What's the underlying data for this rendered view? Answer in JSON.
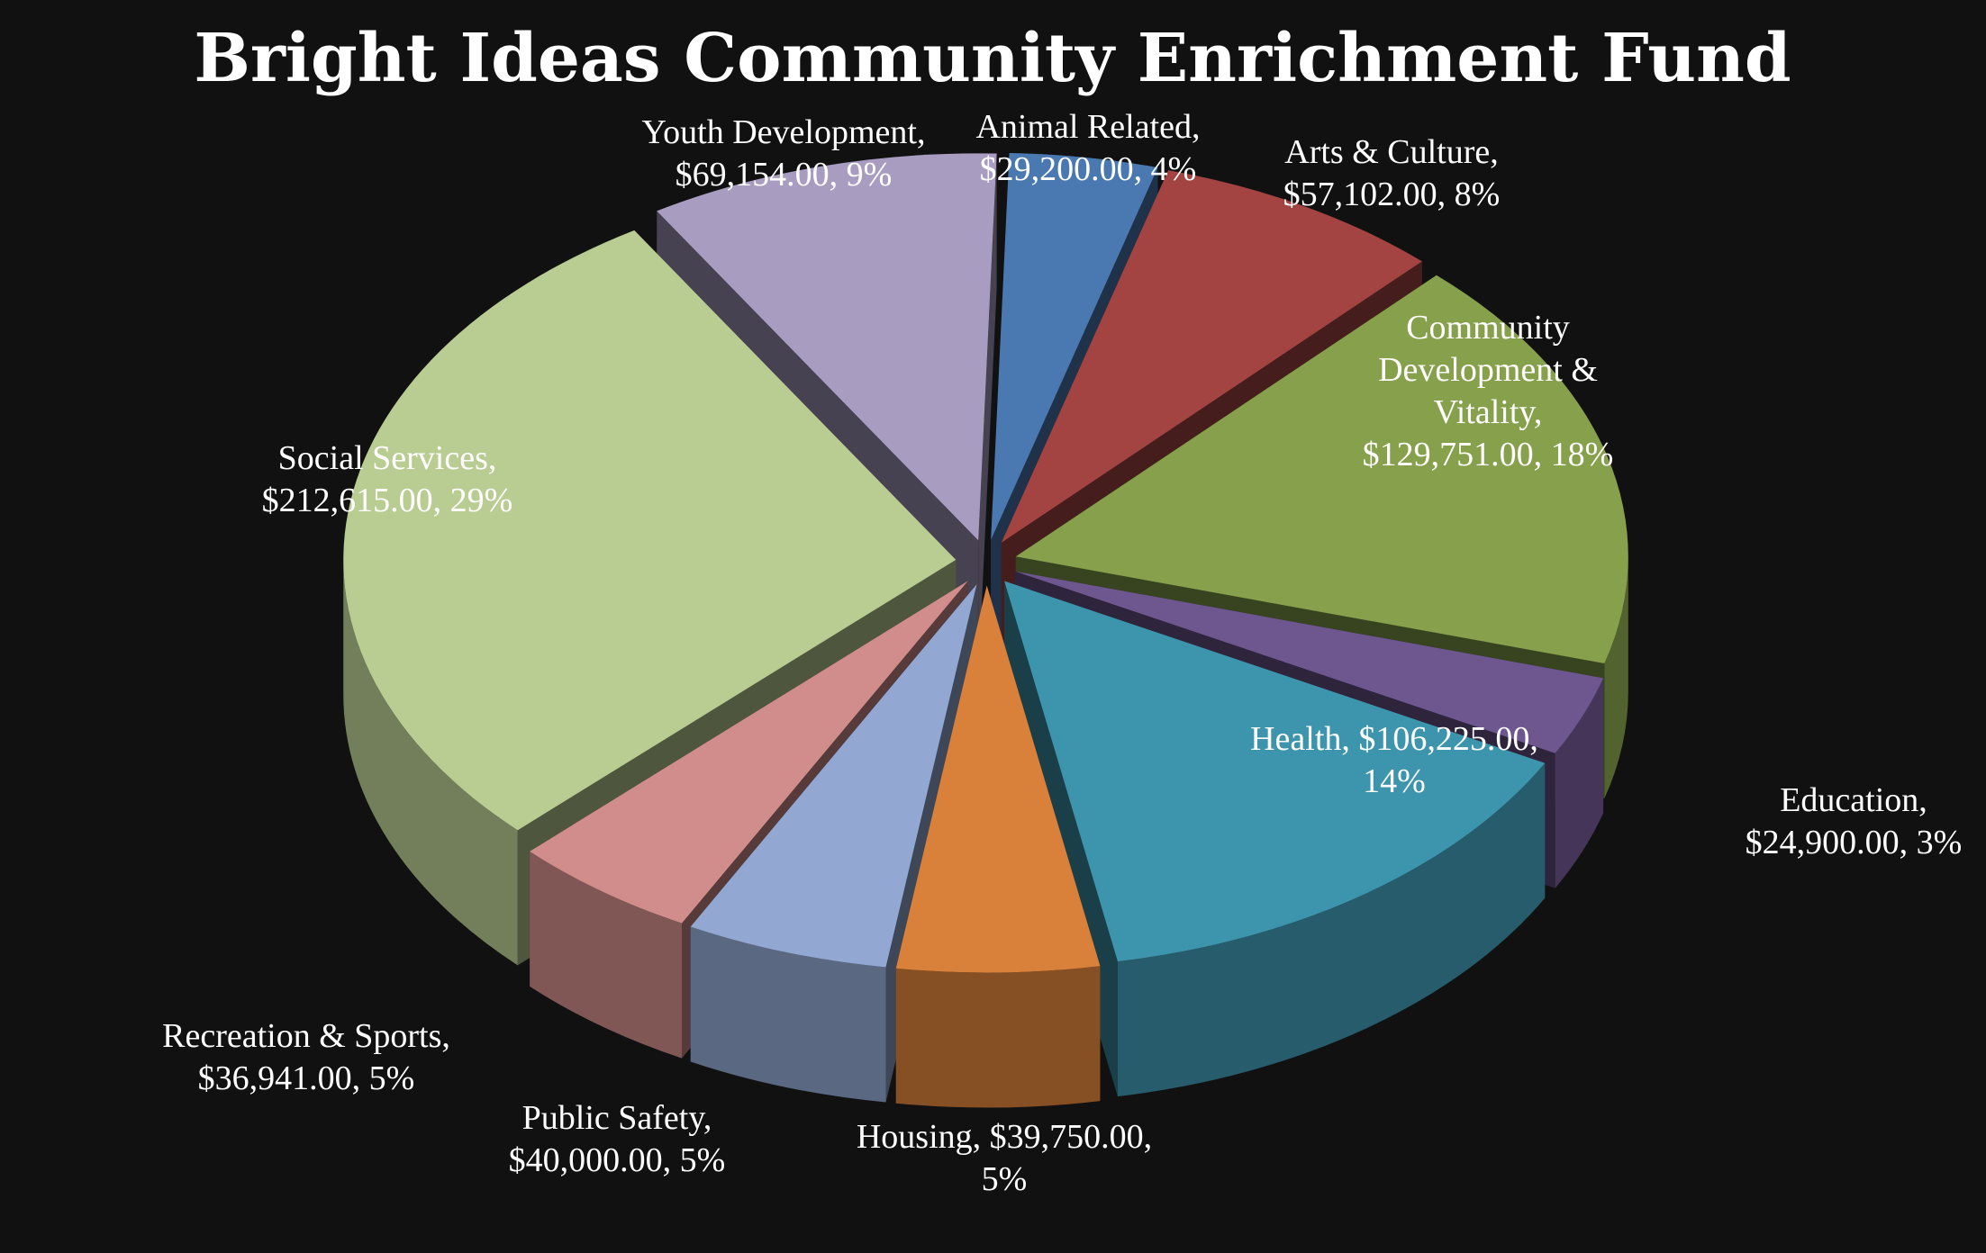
{
  "chart_data": {
    "type": "pie",
    "title": "Bright Ideas Community Enrichment Fund",
    "background": "#111111",
    "slices": [
      {
        "category": "Animal Related",
        "value": 29200.0,
        "percent": 4,
        "color": "#4a78b0",
        "label_lines": [
          "Animal Related,",
          "$29,200.00, 4%"
        ]
      },
      {
        "category": "Arts & Culture",
        "value": 57102.0,
        "percent": 8,
        "color": "#a34442",
        "label_lines": [
          "Arts & Culture,",
          "$57,102.00, 8%"
        ]
      },
      {
        "category": "Community Development & Vitality",
        "value": 129751.0,
        "percent": 18,
        "color": "#86a04b",
        "label_lines": [
          "Community",
          "Development &",
          "Vitality,",
          "$129,751.00, 18%"
        ]
      },
      {
        "category": "Education",
        "value": 24900.0,
        "percent": 3,
        "color": "#6e568f",
        "label_lines": [
          "Education,",
          "$24,900.00, 3%"
        ]
      },
      {
        "category": "Health",
        "value": 106225.0,
        "percent": 14,
        "color": "#3d95ad",
        "label_lines": [
          "Health, $106,225.00,",
          "14%"
        ]
      },
      {
        "category": "Housing",
        "value": 39750.0,
        "percent": 5,
        "color": "#d9803a",
        "label_lines": [
          "Housing, $39,750.00,",
          "5%"
        ]
      },
      {
        "category": "Public Safety",
        "value": 40000.0,
        "percent": 5,
        "color": "#92a8d2",
        "label_lines": [
          "Public Safety,",
          "$40,000.00, 5%"
        ]
      },
      {
        "category": "Recreation & Sports",
        "value": 36941.0,
        "percent": 5,
        "color": "#d08d8b",
        "label_lines": [
          "Recreation & Sports,",
          "$36,941.00, 5%"
        ]
      },
      {
        "category": "Social Services",
        "value": 212615.0,
        "percent": 29,
        "color": "#b9cd93",
        "label_lines": [
          "Social Services,",
          "$212,615.00, 29%"
        ]
      },
      {
        "category": "Youth Development",
        "value": 69154.0,
        "percent": 9,
        "color": "#a99cc1",
        "label_lines": [
          "Youth Development,",
          "$69,154.00, 9%"
        ]
      }
    ],
    "legend": "none",
    "three_d": true,
    "exploded": true
  }
}
